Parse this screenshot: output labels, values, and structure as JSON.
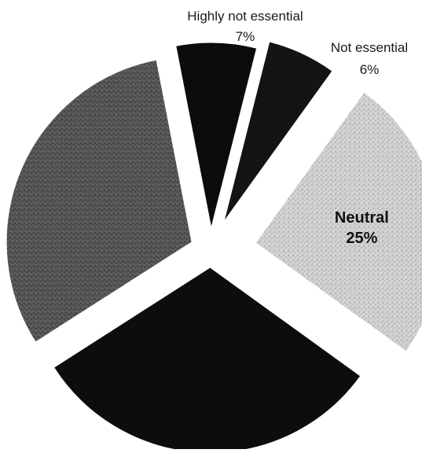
{
  "chart_data": {
    "type": "pie",
    "title": "",
    "legend": "none",
    "slices": [
      {
        "label": "Highly not essential",
        "value": 7,
        "percent_label": "7%",
        "color": "#0b0b0b",
        "pattern": "solid",
        "show_label": true,
        "label_style": "outside"
      },
      {
        "label": "Not essential",
        "value": 6,
        "percent_label": "6%",
        "color": "#141414",
        "pattern": "solid",
        "show_label": true,
        "label_style": "outside"
      },
      {
        "label": "Neutral",
        "value": 25,
        "percent_label": "25%",
        "color": "#c9c9c9",
        "pattern": "stipple-light",
        "show_label": true,
        "label_style": "inside"
      },
      {
        "label": "",
        "value": 31,
        "percent_label": "",
        "color": "#0d0d0d",
        "pattern": "solid",
        "show_label": false,
        "label_style": "none"
      },
      {
        "label": "",
        "value": 31,
        "percent_label": "",
        "color": "#4f4f4f",
        "pattern": "stipple-dark",
        "show_label": false,
        "label_style": "none"
      }
    ]
  }
}
